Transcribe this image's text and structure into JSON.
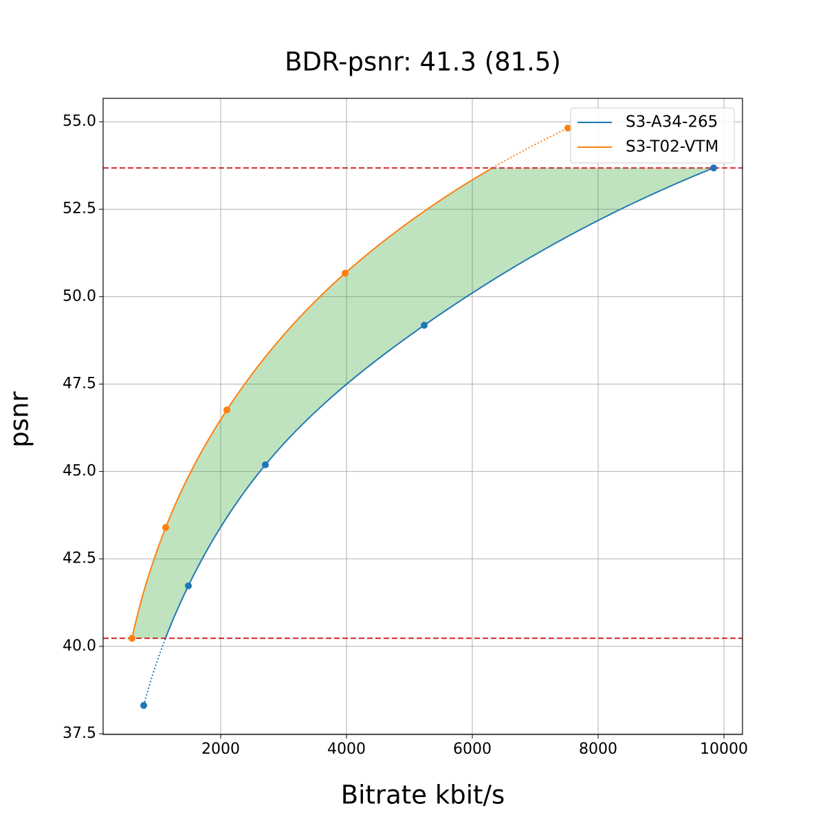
{
  "chart_data": {
    "type": "line",
    "title": "BDR-psnr: 41.3 (81.5)",
    "x_label": "Bitrate kbit/s",
    "y_label": "psnr",
    "series": [
      {
        "name": "S3-A34-265",
        "color": "#1f77b4",
        "x": [
          776,
          1486,
          2710,
          5235,
          9836
        ],
        "values": [
          38.31,
          41.73,
          45.19,
          49.18,
          53.68
        ]
      },
      {
        "name": "S3-T02-VTM",
        "color": "#ff7f0e",
        "x": [
          590,
          1126,
          2098,
          3978,
          7519
        ],
        "values": [
          40.23,
          43.4,
          46.76,
          50.67,
          54.82
        ]
      }
    ],
    "reference_lines": [
      40.23,
      53.68
    ],
    "reference_color": "#d62728",
    "fill_color": "#2ca02c",
    "xlim": [
      131,
      10295
    ],
    "ylim": [
      37.48,
      55.67
    ],
    "xticks": [
      2000,
      4000,
      6000,
      8000,
      10000
    ],
    "yticks": [
      37.5,
      {
        "value": 40,
        "label": "40.0"
      },
      42.5,
      {
        "value": 45,
        "label": "45.0"
      },
      47.5,
      {
        "value": 50,
        "label": "50.0"
      },
      52.5,
      {
        "value": 55,
        "label": "55.0"
      }
    ],
    "grid": true,
    "legend": "upper right"
  }
}
